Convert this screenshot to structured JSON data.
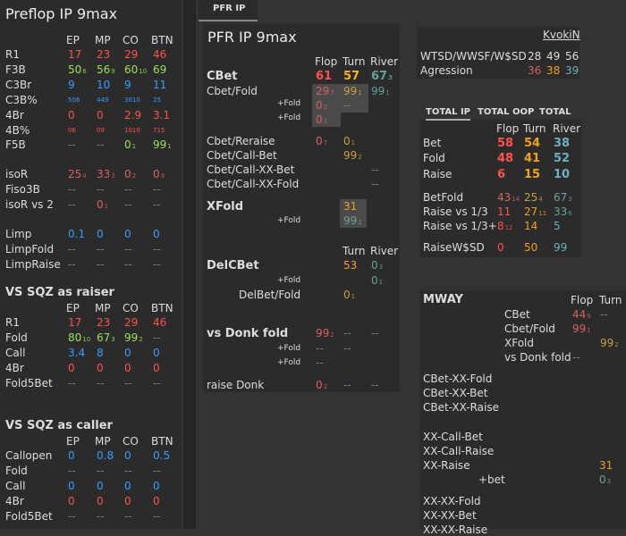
{
  "left": {
    "title": "Preflop IP 9max",
    "cols": [
      "EP",
      "MP",
      "CO",
      "BTN"
    ],
    "rows": [
      {
        "label": "R1",
        "v": [
          "17",
          "23",
          "29",
          "46"
        ],
        "s": [
          "",
          "",
          "",
          ""
        ]
      },
      {
        "label": "F3B",
        "v": [
          "50",
          "56",
          "60",
          "69"
        ],
        "s": [
          "6",
          "9",
          "10",
          ""
        ]
      },
      {
        "label": "C3Br",
        "v": [
          "9",
          "10",
          "9",
          "11"
        ],
        "s": [
          "",
          "",
          "",
          ""
        ]
      },
      {
        "label": "C3B%",
        "v": [
          "506",
          "449",
          "3010",
          "25"
        ],
        "s": [
          "",
          "",
          "",
          ""
        ]
      },
      {
        "label": "4Br",
        "v": [
          "0",
          "0",
          "2.9",
          "3.1"
        ],
        "s": [
          "",
          "",
          "",
          ""
        ]
      },
      {
        "label": "4B%",
        "v": [
          "06",
          "09",
          "1010",
          "715"
        ],
        "s": [
          "",
          "",
          "",
          ""
        ]
      },
      {
        "label": "F5B",
        "v": [
          "--",
          "--",
          "0",
          "99"
        ],
        "s": [
          "",
          "",
          "1",
          "1"
        ]
      },
      {
        "label": "isoR",
        "v": [
          "25",
          "33",
          "0",
          "0"
        ],
        "s": [
          "4",
          "3",
          "2",
          "3"
        ]
      },
      {
        "label": "Fiso3B",
        "v": [
          "--",
          "--",
          "--",
          "--"
        ],
        "s": [
          "",
          "",
          "",
          ""
        ]
      },
      {
        "label": "isoR vs 2",
        "v": [
          "--",
          "0",
          "--",
          "--"
        ],
        "s": [
          "",
          "1",
          "",
          ""
        ]
      },
      {
        "label": "Limp",
        "v": [
          "0.1",
          "0",
          "0",
          "0"
        ],
        "s": [
          "",
          "",
          "",
          ""
        ]
      },
      {
        "label": "LimpFold",
        "v": [
          "--",
          "--",
          "--",
          "--"
        ],
        "s": [
          "",
          "",
          "",
          ""
        ]
      },
      {
        "label": "LimpRaise",
        "v": [
          "--",
          "--",
          "--",
          "--"
        ],
        "s": [
          "",
          "",
          "",
          ""
        ]
      }
    ],
    "sqz_raiser": {
      "title": "VS SQZ as raiser",
      "cols": [
        "EP",
        "MP",
        "CO",
        "BTN"
      ],
      "rows": [
        {
          "label": "R1",
          "v": [
            "17",
            "23",
            "29",
            "46"
          ],
          "s": [
            "",
            "",
            "",
            ""
          ]
        },
        {
          "label": "Fold",
          "v": [
            "80",
            "67",
            "99",
            "--"
          ],
          "s": [
            "10",
            "3",
            "2",
            ""
          ]
        },
        {
          "label": "Call",
          "v": [
            "3.4",
            "8",
            "0",
            "0"
          ],
          "s": [
            "",
            "",
            "",
            ""
          ]
        },
        {
          "label": "4Br",
          "v": [
            "0",
            "0",
            "0",
            "0"
          ],
          "s": [
            "",
            "",
            "",
            ""
          ]
        },
        {
          "label": "Fold5Bet",
          "v": [
            "--",
            "--",
            "--",
            "--"
          ],
          "s": [
            "",
            "",
            "",
            ""
          ]
        }
      ]
    },
    "sqz_caller": {
      "title": "VS SQZ as caller",
      "cols": [
        "EP",
        "MP",
        "CO",
        "BTN"
      ],
      "rows": [
        {
          "label": "Callopen",
          "v": [
            "0",
            "0.8",
            "0",
            "0.5"
          ],
          "s": [
            "",
            "",
            "",
            ""
          ]
        },
        {
          "label": "Fold",
          "v": [
            "--",
            "--",
            "--",
            "--"
          ],
          "s": [
            "",
            "",
            "",
            ""
          ]
        },
        {
          "label": "Call",
          "v": [
            "0",
            "0",
            "0",
            "0"
          ],
          "s": [
            "",
            "",
            "",
            ""
          ]
        },
        {
          "label": "4Br",
          "v": [
            "0",
            "0",
            "0",
            "0"
          ],
          "s": [
            "",
            "",
            "",
            ""
          ]
        },
        {
          "label": "Fold5Bet",
          "v": [
            "--",
            "--",
            "--",
            "--"
          ],
          "s": [
            "",
            "",
            "",
            ""
          ]
        }
      ]
    }
  },
  "tabs": {
    "active": "PFR IP"
  },
  "mid": {
    "title": "PFR IP 9max",
    "cols": [
      "Flop",
      "Turn",
      "River"
    ],
    "cbet": {
      "label": "CBet",
      "v": [
        "61",
        "57",
        "67"
      ],
      "s": [
        "",
        "",
        "3"
      ]
    },
    "cbetfold": {
      "label": "Cbet/Fold",
      "v": [
        "29",
        "99",
        "99"
      ],
      "s": [
        "7",
        "1",
        "1"
      ]
    },
    "fold1": {
      "label": "+Fold",
      "v": [
        "0",
        "--"
      ],
      "s": [
        "2",
        ""
      ]
    },
    "fold2": {
      "label": "+Fold",
      "v": [
        "0"
      ],
      "s": [
        "1"
      ]
    },
    "cbetreraise": {
      "label": "Cbet/Reraise",
      "v": [
        "0",
        "0"
      ],
      "s": [
        "7",
        "1"
      ]
    },
    "cbetcallbet": {
      "label": "Cbet/Call-Bet",
      "v": [
        "99"
      ],
      "s": [
        "2"
      ]
    },
    "ccxxbet": {
      "label": "Cbet/Call-XX-Bet",
      "v": [
        "--"
      ]
    },
    "ccxxfold": {
      "label": "Cbet/Call-XX-Fold",
      "v": [
        "--"
      ]
    },
    "xfold": {
      "label": "XFold",
      "v": [
        "31"
      ]
    },
    "xfoldfold": {
      "label": "+Fold",
      "v": [
        "99"
      ],
      "s": [
        "2"
      ]
    },
    "delcols": [
      "Turn",
      "River"
    ],
    "delcbet": {
      "label": "DelCBet",
      "v": [
        "53",
        "0"
      ],
      "s": [
        "",
        "3"
      ]
    },
    "delfold": {
      "label": "+Fold",
      "v": [
        "0"
      ],
      "s": [
        "1"
      ]
    },
    "delbetfold": {
      "label": "DelBet/Fold",
      "v": [
        "0"
      ],
      "s": [
        "1"
      ]
    },
    "donk": {
      "label": "vs Donk fold",
      "v": [
        "99",
        "--",
        "--"
      ],
      "s": [
        "2",
        "",
        ""
      ]
    },
    "donkf1": {
      "label": "+Fold",
      "v": [
        "--",
        "--"
      ]
    },
    "donkf2": {
      "label": "+Fold",
      "v": [
        "--"
      ]
    },
    "raisedonk": {
      "label": "raise Donk",
      "v": [
        "0",
        "--",
        "--"
      ],
      "s": [
        "2",
        "",
        ""
      ]
    }
  },
  "right": {
    "user": "KvokiN",
    "wtsd_label": "WTSD/WWSF/W$SD",
    "wtsd": [
      "28",
      "49",
      "56"
    ],
    "agr_label": "Agression",
    "agr": [
      "36",
      "38",
      "39"
    ],
    "tabs": [
      "TOTAL IP",
      "TOTAL OOP",
      "TOTAL"
    ],
    "cols": [
      "Flop",
      "Turn",
      "River"
    ],
    "bet": {
      "label": "Bet",
      "v": [
        "58",
        "54",
        "38"
      ]
    },
    "fold": {
      "label": "Fold",
      "v": [
        "48",
        "41",
        "52"
      ]
    },
    "raise": {
      "label": "Raise",
      "v": [
        "6",
        "15",
        "10"
      ]
    },
    "betfold": {
      "label": "BetFold",
      "v": [
        "43",
        "25",
        "67"
      ],
      "s": [
        "14",
        "4",
        "3"
      ]
    },
    "r13": {
      "label": "Raise vs 1/3",
      "v": [
        "11",
        "27",
        "33"
      ],
      "s": [
        "",
        "11",
        "6"
      ]
    },
    "r13p": {
      "label": "Raise vs 1/3+",
      "v": [
        "8",
        "14",
        "5"
      ],
      "s": [
        "12",
        "",
        ""
      ]
    },
    "raisewsd": {
      "label": "RaiseW$SD",
      "v": [
        "0",
        "50",
        "99"
      ]
    },
    "mway": {
      "title": "MWAY",
      "cols": [
        "Flop",
        "Turn"
      ],
      "cbet": {
        "label": "CBet",
        "v": [
          "44",
          "--"
        ],
        "s": [
          "9",
          ""
        ]
      },
      "cbetfold": {
        "label": "Cbet/Fold",
        "v": [
          "99"
        ],
        "s": [
          "1"
        ]
      },
      "xfold": {
        "label": "XFold",
        "v": [
          "99"
        ],
        "s": [
          "2"
        ]
      },
      "donk": {
        "label": "vs Donk fold",
        "v": [
          "--"
        ]
      },
      "l1": "CBet-XX-Fold",
      "l2": "CBet-XX-Bet",
      "l3": "CBet-XX-Raise",
      "l4": "XX-Call-Bet",
      "l5": "XX-Call-Raise",
      "l6": "XX-Raise",
      "l6v": "31",
      "l7": "+bet",
      "l7v": "0",
      "l7s": "3",
      "l8": "XX-XX-Fold",
      "l9": "XX-XX-Bet",
      "l10": "XX-XX-Raise"
    }
  }
}
